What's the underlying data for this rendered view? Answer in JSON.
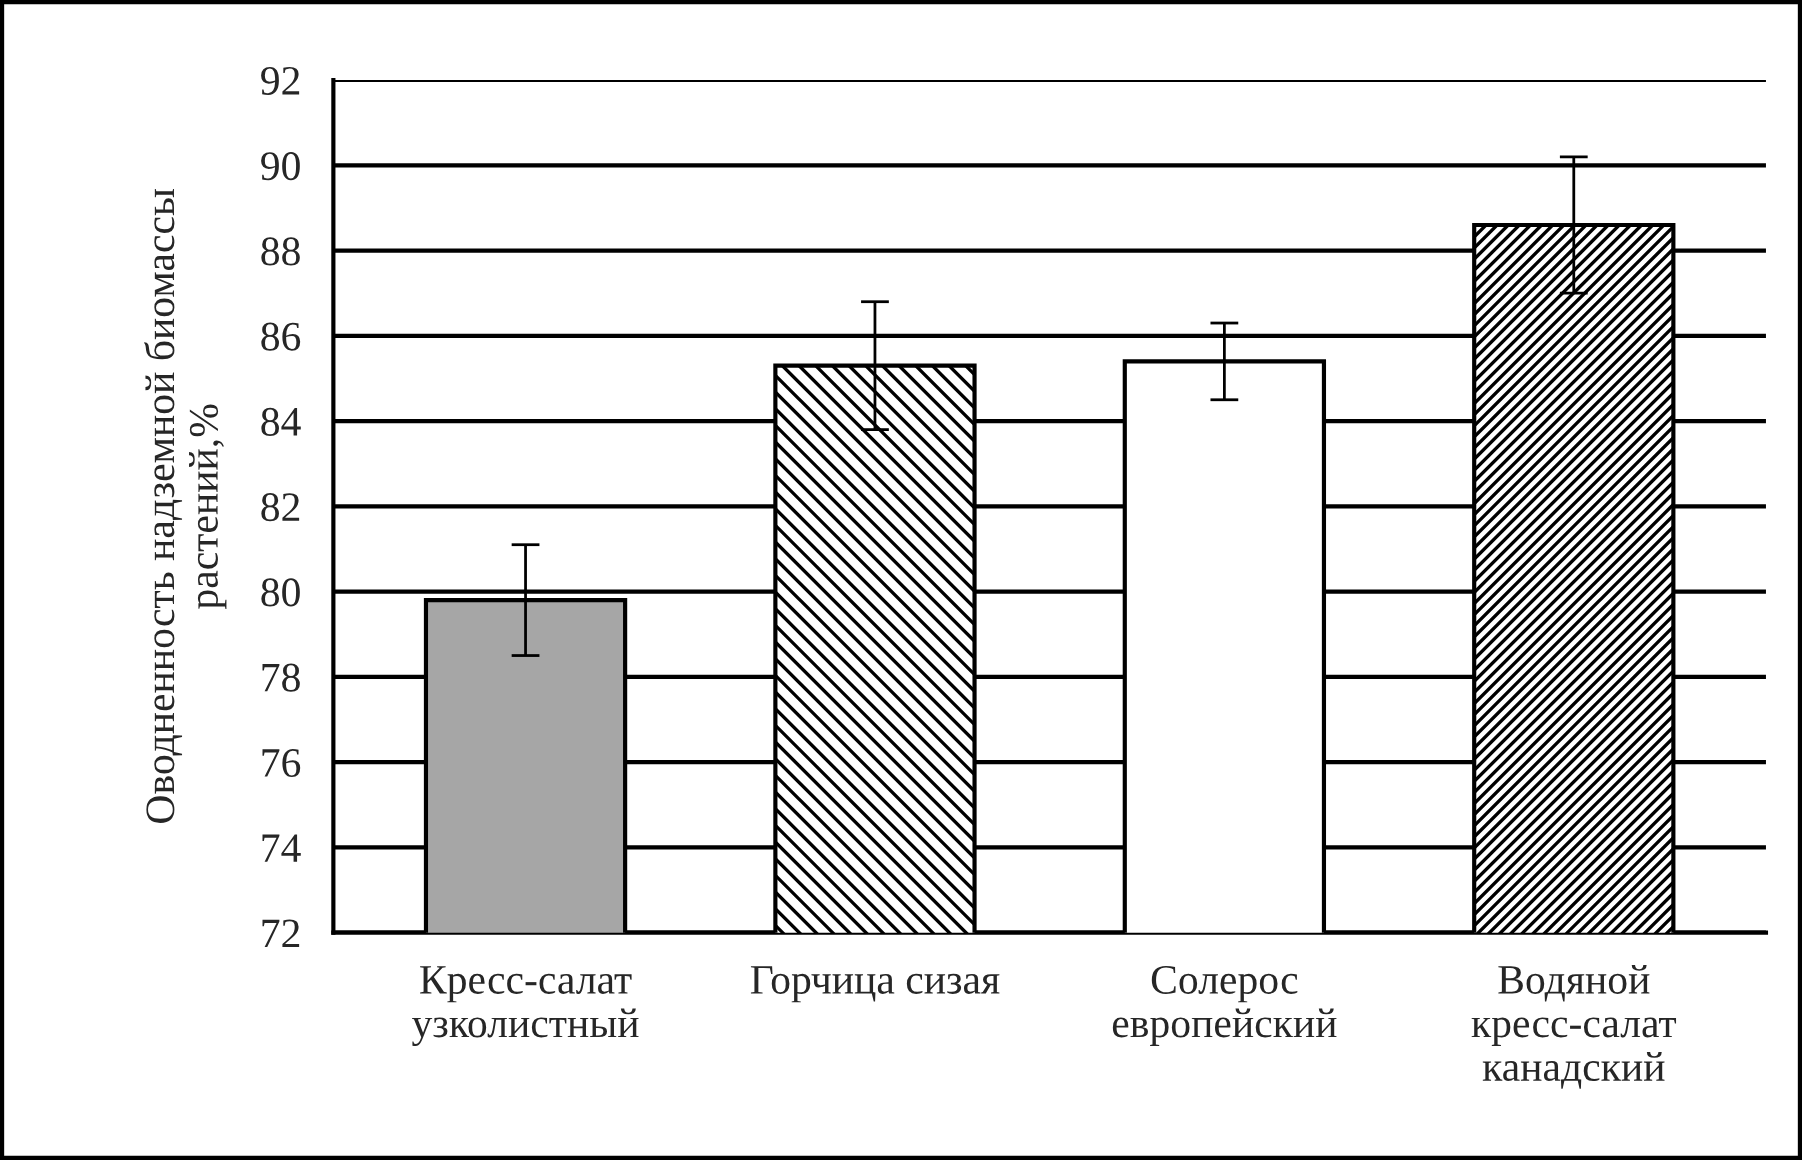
{
  "chart_data": {
    "type": "bar",
    "ylabel": "Оводненность надземной биомассы\nрастений,%",
    "categories": [
      "Кресс-салат\nузколистный",
      "Горчица сизая",
      "Солерос\nевропейский",
      "Водяной\nкресс-салат\nканадский"
    ],
    "values": [
      79.8,
      85.3,
      85.4,
      88.6
    ],
    "errors": [
      1.3,
      1.5,
      0.9,
      1.6
    ],
    "colors": [
      "#a6a6a6",
      "#000000",
      "#ffffff",
      "#000000"
    ],
    "ylim": [
      72,
      92
    ],
    "yticks": [
      72,
      74,
      76,
      78,
      80,
      82,
      84,
      86,
      88,
      90,
      92
    ],
    "grid": "y"
  }
}
